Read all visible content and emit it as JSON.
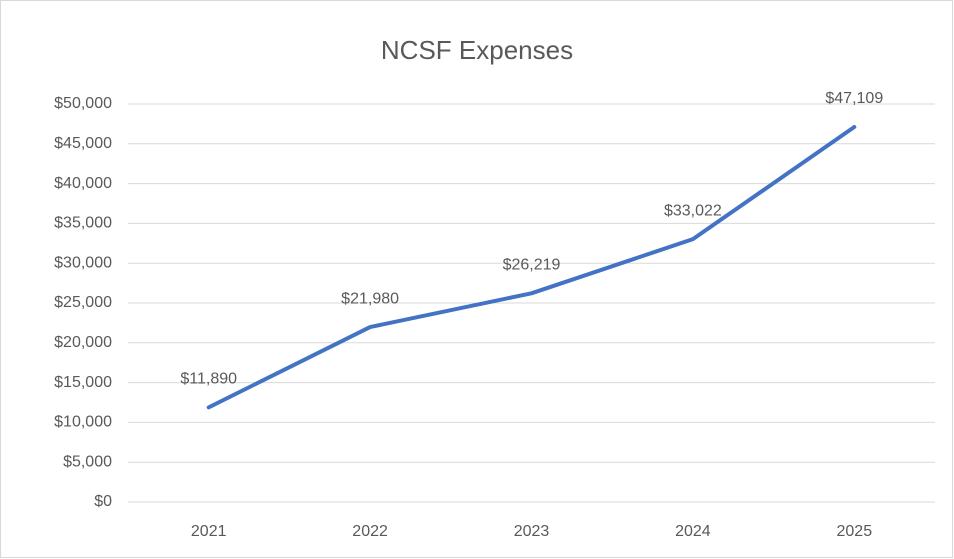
{
  "chart_data": {
    "type": "line",
    "title": "NCSF Expenses",
    "categories": [
      "2021",
      "2022",
      "2023",
      "2024",
      "2025"
    ],
    "series": [
      {
        "name": "NCSF Expenses",
        "color": "#4472c4",
        "values": [
          11890,
          21980,
          26219,
          33022,
          47109
        ],
        "value_labels": [
          "$11,890",
          "$21,980",
          "$26,219",
          "$33,022",
          "$47,109"
        ]
      }
    ],
    "ylim": [
      0,
      50000
    ],
    "yticks": [
      {
        "value": 0,
        "label": "$0"
      },
      {
        "value": 5000,
        "label": "$5,000"
      },
      {
        "value": 10000,
        "label": "$10,000"
      },
      {
        "value": 15000,
        "label": "$15,000"
      },
      {
        "value": 20000,
        "label": "$20,000"
      },
      {
        "value": 25000,
        "label": "$25,000"
      },
      {
        "value": 30000,
        "label": "$30,000"
      },
      {
        "value": 35000,
        "label": "$35,000"
      },
      {
        "value": 40000,
        "label": "$40,000"
      },
      {
        "value": 45000,
        "label": "$45,000"
      },
      {
        "value": 50000,
        "label": "$50,000"
      }
    ],
    "grid": true
  }
}
